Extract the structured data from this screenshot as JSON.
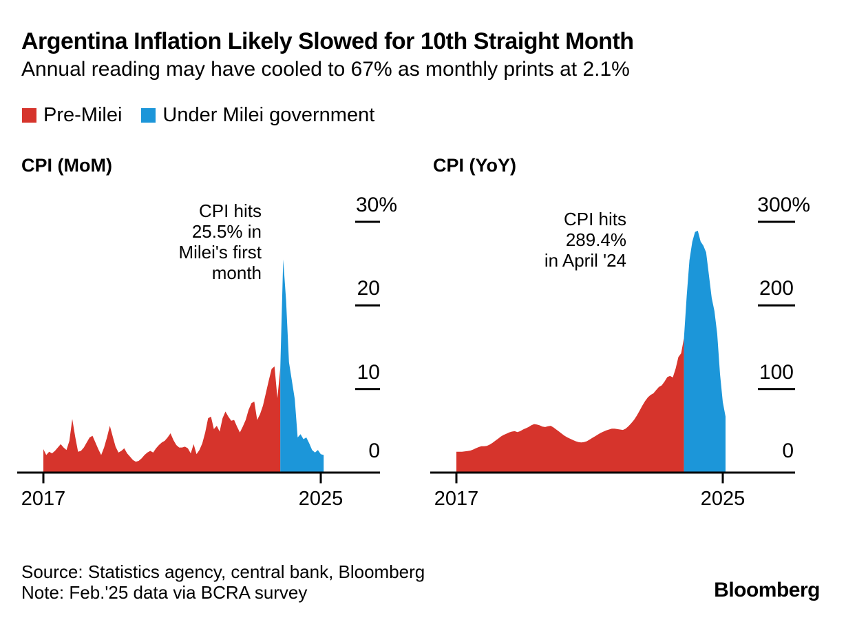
{
  "header": {
    "title": "Argentina Inflation Likely Slowed for 10th Straight Month",
    "subtitle": "Annual reading may have cooled to 67% as monthly prints at 2.1%"
  },
  "legend": [
    {
      "label": "Pre-Milei",
      "color": "#d6342c"
    },
    {
      "label": "Under Milei government",
      "color": "#1c96d9"
    }
  ],
  "colors": {
    "pre_milei_red": "#d6342c",
    "milei_blue": "#1c96d9",
    "axis": "#000000"
  },
  "chart_data": [
    {
      "type": "area",
      "title": "CPI (MoM)",
      "annotation": "CPI hits\n25.5% in\nMilei's first\nmonth",
      "x_start": "2017-01",
      "x_end": "2025-02",
      "frequency": "monthly",
      "xtick_labels": [
        "2017",
        "2025"
      ],
      "ytick_labels": [
        "30%",
        "20",
        "10",
        "0"
      ],
      "ytick_values": [
        30,
        20,
        10,
        0
      ],
      "ylim": [
        0,
        30
      ],
      "split_note": "red = Pre-Milei (Jan 2017 - Nov 2023), blue = Under Milei government (Dec 2023 - Feb 2025)",
      "split_index": 83,
      "series": [
        {
          "name": "CPI month-over-month %",
          "values": [
            2.8,
            2.1,
            2.5,
            2.3,
            2.6,
            3.0,
            3.4,
            3.0,
            2.7,
            3.8,
            6.4,
            4.3,
            2.5,
            2.6,
            3.0,
            3.6,
            4.2,
            4.4,
            3.6,
            2.8,
            2.1,
            3.0,
            4.2,
            5.6,
            4.3,
            3.1,
            2.4,
            2.6,
            2.9,
            2.3,
            1.9,
            1.5,
            1.3,
            1.4,
            1.7,
            2.1,
            2.4,
            2.6,
            2.4,
            2.9,
            3.3,
            3.6,
            3.8,
            4.2,
            4.7,
            3.9,
            3.3,
            3.0,
            3.0,
            3.1,
            2.9,
            2.3,
            3.4,
            2.2,
            2.7,
            3.5,
            4.8,
            6.5,
            6.7,
            5.2,
            5.6,
            4.9,
            6.5,
            7.3,
            6.7,
            6.2,
            6.3,
            5.5,
            4.8,
            5.5,
            6.3,
            7.5,
            8.3,
            8.5,
            6.3,
            7.0,
            8.0,
            9.5,
            11.0,
            12.4,
            12.7,
            8.9,
            12.5,
            25.5,
            20.6,
            13.2,
            11.0,
            8.8,
            4.2,
            4.6,
            4.0,
            4.2,
            3.5,
            2.7,
            2.4,
            2.7,
            2.2,
            2.1
          ]
        }
      ]
    },
    {
      "type": "area",
      "title": "CPI (YoY)",
      "annotation": "CPI hits\n289.4%\nin April '24",
      "x_start": "2017-01",
      "x_end": "2025-02",
      "frequency": "monthly",
      "xtick_labels": [
        "2017",
        "2025"
      ],
      "ytick_labels": [
        "300%",
        "200",
        "100",
        "0"
      ],
      "ytick_values": [
        300,
        200,
        100,
        0
      ],
      "ylim": [
        0,
        300
      ],
      "split_note": "red = Pre-Milei (Jan 2017 - Nov 2023), blue = Under Milei government (Dec 2023 - Feb 2025)",
      "split_index": 83,
      "series": [
        {
          "name": "CPI year-over-year %",
          "values": [
            25,
            25,
            25,
            25.3,
            25.8,
            26.3,
            27.5,
            29,
            30.5,
            31.5,
            31.5,
            32,
            33.5,
            35.5,
            38,
            40.5,
            43,
            45,
            46.5,
            48,
            49,
            49.5,
            48.5,
            49.5,
            51.5,
            53,
            54.5,
            56.5,
            58,
            57.5,
            56.5,
            55,
            54.5,
            55.5,
            56,
            54,
            51.5,
            49,
            46.5,
            44,
            42,
            40.5,
            39,
            37.5,
            36.5,
            36,
            36.5,
            37.5,
            39.5,
            41.5,
            43.5,
            45.5,
            47.5,
            49,
            50.5,
            51.5,
            52.5,
            52.5,
            52,
            51.5,
            51,
            52.5,
            55.5,
            59,
            63,
            68,
            74,
            80,
            85.5,
            90,
            93,
            94.8,
            98.8,
            102.5,
            104.3,
            108.8,
            114.2,
            115.6,
            113.8,
            124.4,
            138.3,
            142.7,
            160.9,
            211.4,
            254.2,
            276.2,
            287.9,
            289.4,
            276.4,
            271.5,
            263.4,
            236.7,
            209,
            193,
            166,
            117.8,
            84.5,
            66.9
          ]
        }
      ]
    }
  ],
  "footer": {
    "source": "Source: Statistics agency, central bank, Bloomberg",
    "note": "Note: Feb.'25 data via BCRA survey",
    "logo": "Bloomberg"
  }
}
